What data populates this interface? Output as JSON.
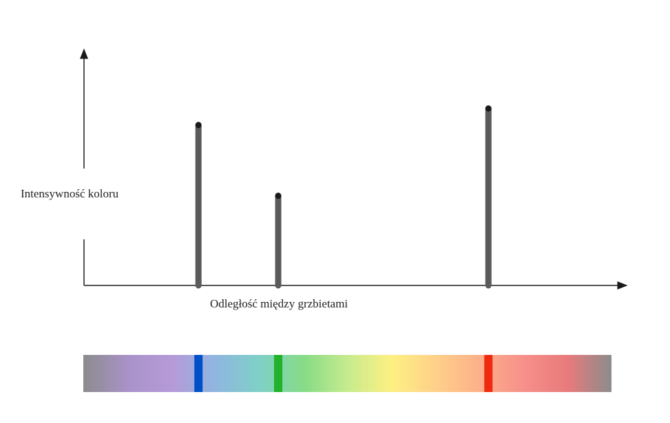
{
  "axis_labels": {
    "y": "Intensywność koloru",
    "x": "Odległość między grzbietami"
  },
  "peaks": [
    {
      "name": "blue",
      "position": 0.218,
      "intensity": 0.68,
      "color": "#0050c8"
    },
    {
      "name": "green",
      "position": 0.369,
      "intensity": 0.38,
      "color": "#1fb22a"
    },
    {
      "name": "red",
      "position": 0.767,
      "intensity": 0.75,
      "color": "#ee2a10"
    }
  ],
  "spectrum_colors": [
    "#8c8c8c",
    "#a892c8",
    "#b69ad8",
    "#8fb6e0",
    "#7fd0c8",
    "#86db86",
    "#c6eb8e",
    "#fdf082",
    "#fed08a",
    "#fdb08a",
    "#f7908a",
    "#e87a7c",
    "#8c8c8c"
  ],
  "colors": {
    "axis": "#1a1a1a",
    "peak": "#5a5a5a"
  }
}
